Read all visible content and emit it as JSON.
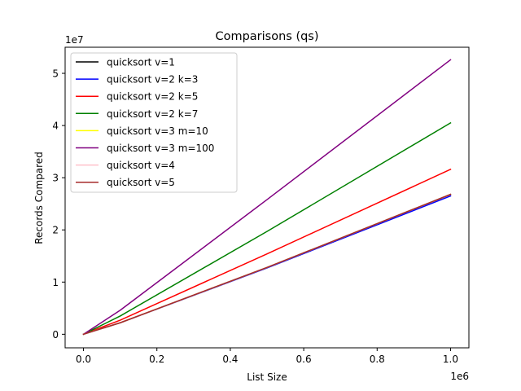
{
  "chart_data": {
    "type": "line",
    "title": "Comparisons (qs)",
    "xlabel": "List Size",
    "ylabel": "Records Compared",
    "x_offset_label": "1e6",
    "y_offset_label": "1e7",
    "xlim": [
      -50000,
      1050000
    ],
    "ylim": [
      -2600000,
      55000000
    ],
    "x_ticks": [
      {
        "value": 0,
        "label": "0.0"
      },
      {
        "value": 200000,
        "label": "0.2"
      },
      {
        "value": 400000,
        "label": "0.4"
      },
      {
        "value": 600000,
        "label": "0.6"
      },
      {
        "value": 800000,
        "label": "0.8"
      },
      {
        "value": 1000000,
        "label": "1.0"
      }
    ],
    "y_ticks": [
      {
        "value": 0,
        "label": "0"
      },
      {
        "value": 10000000,
        "label": "1"
      },
      {
        "value": 20000000,
        "label": "2"
      },
      {
        "value": 30000000,
        "label": "3"
      },
      {
        "value": 40000000,
        "label": "4"
      },
      {
        "value": 50000000,
        "label": "5"
      }
    ],
    "grid": false,
    "legend_position": "top-left",
    "x": [
      0,
      100000,
      500000,
      1000000
    ],
    "series": [
      {
        "name": "quicksort v=1",
        "color": "#000000",
        "values": [
          0,
          2200000,
          12800000,
          26800000
        ]
      },
      {
        "name": "quicksort v=2 k=3",
        "color": "#0000ff",
        "values": [
          0,
          2200000,
          12700000,
          26500000
        ]
      },
      {
        "name": "quicksort v=2 k=5",
        "color": "#ff0000",
        "values": [
          0,
          2700000,
          15400000,
          31600000
        ]
      },
      {
        "name": "quicksort v=2 k=7",
        "color": "#008000",
        "values": [
          0,
          3500000,
          19700000,
          40500000
        ]
      },
      {
        "name": "quicksort v=3 m=10",
        "color": "#ffff00",
        "values": [
          0,
          2200000,
          12800000,
          26800000
        ]
      },
      {
        "name": "quicksort v=3 m=100",
        "color": "#800080",
        "values": [
          0,
          4600000,
          25800000,
          52600000
        ]
      },
      {
        "name": "quicksort v=4",
        "color": "#ffc0cb",
        "values": [
          0,
          2200000,
          12800000,
          26800000
        ]
      },
      {
        "name": "quicksort v=5",
        "color": "#a52a2a",
        "values": [
          0,
          2200000,
          12800000,
          26800000
        ]
      }
    ]
  }
}
